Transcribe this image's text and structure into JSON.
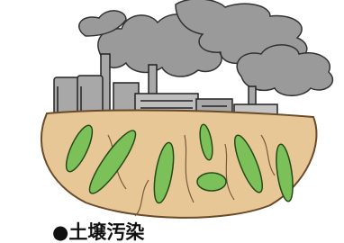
{
  "caption": "●土壌汚染"
}
